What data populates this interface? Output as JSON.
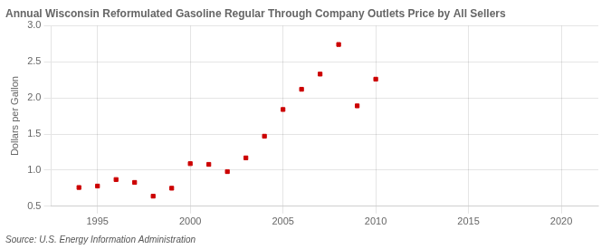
{
  "chart_data": {
    "type": "scatter",
    "title": "Annual Wisconsin Reformulated Gasoline Regular Through Company Outlets Price by All Sellers",
    "ylabel": "Dollars per Gallon",
    "annotations": [
      "Source: U.S. Energy Information Administration"
    ],
    "x": [
      1994,
      1995,
      1996,
      1997,
      1998,
      1999,
      2000,
      2001,
      2002,
      2003,
      2004,
      2005,
      2006,
      2007,
      2008,
      2009,
      2010
    ],
    "values": [
      0.76,
      0.78,
      0.87,
      0.83,
      0.64,
      0.75,
      1.09,
      1.08,
      0.98,
      1.17,
      1.47,
      1.84,
      2.12,
      2.33,
      2.74,
      1.89,
      2.26
    ],
    "color": "#cc0000",
    "marker": "square",
    "xlim": [
      1992.5,
      2022
    ],
    "xticks": [
      1995,
      2000,
      2005,
      2010,
      2015,
      2020
    ],
    "ylim": [
      0.5,
      3.0
    ],
    "yticks": [
      0.5,
      {
        "value": 1.0,
        "label": "1.0"
      },
      1.5,
      {
        "value": 2.0,
        "label": "2.0"
      },
      2.5,
      {
        "value": 3.0,
        "label": "3.0"
      }
    ],
    "grid": true
  }
}
